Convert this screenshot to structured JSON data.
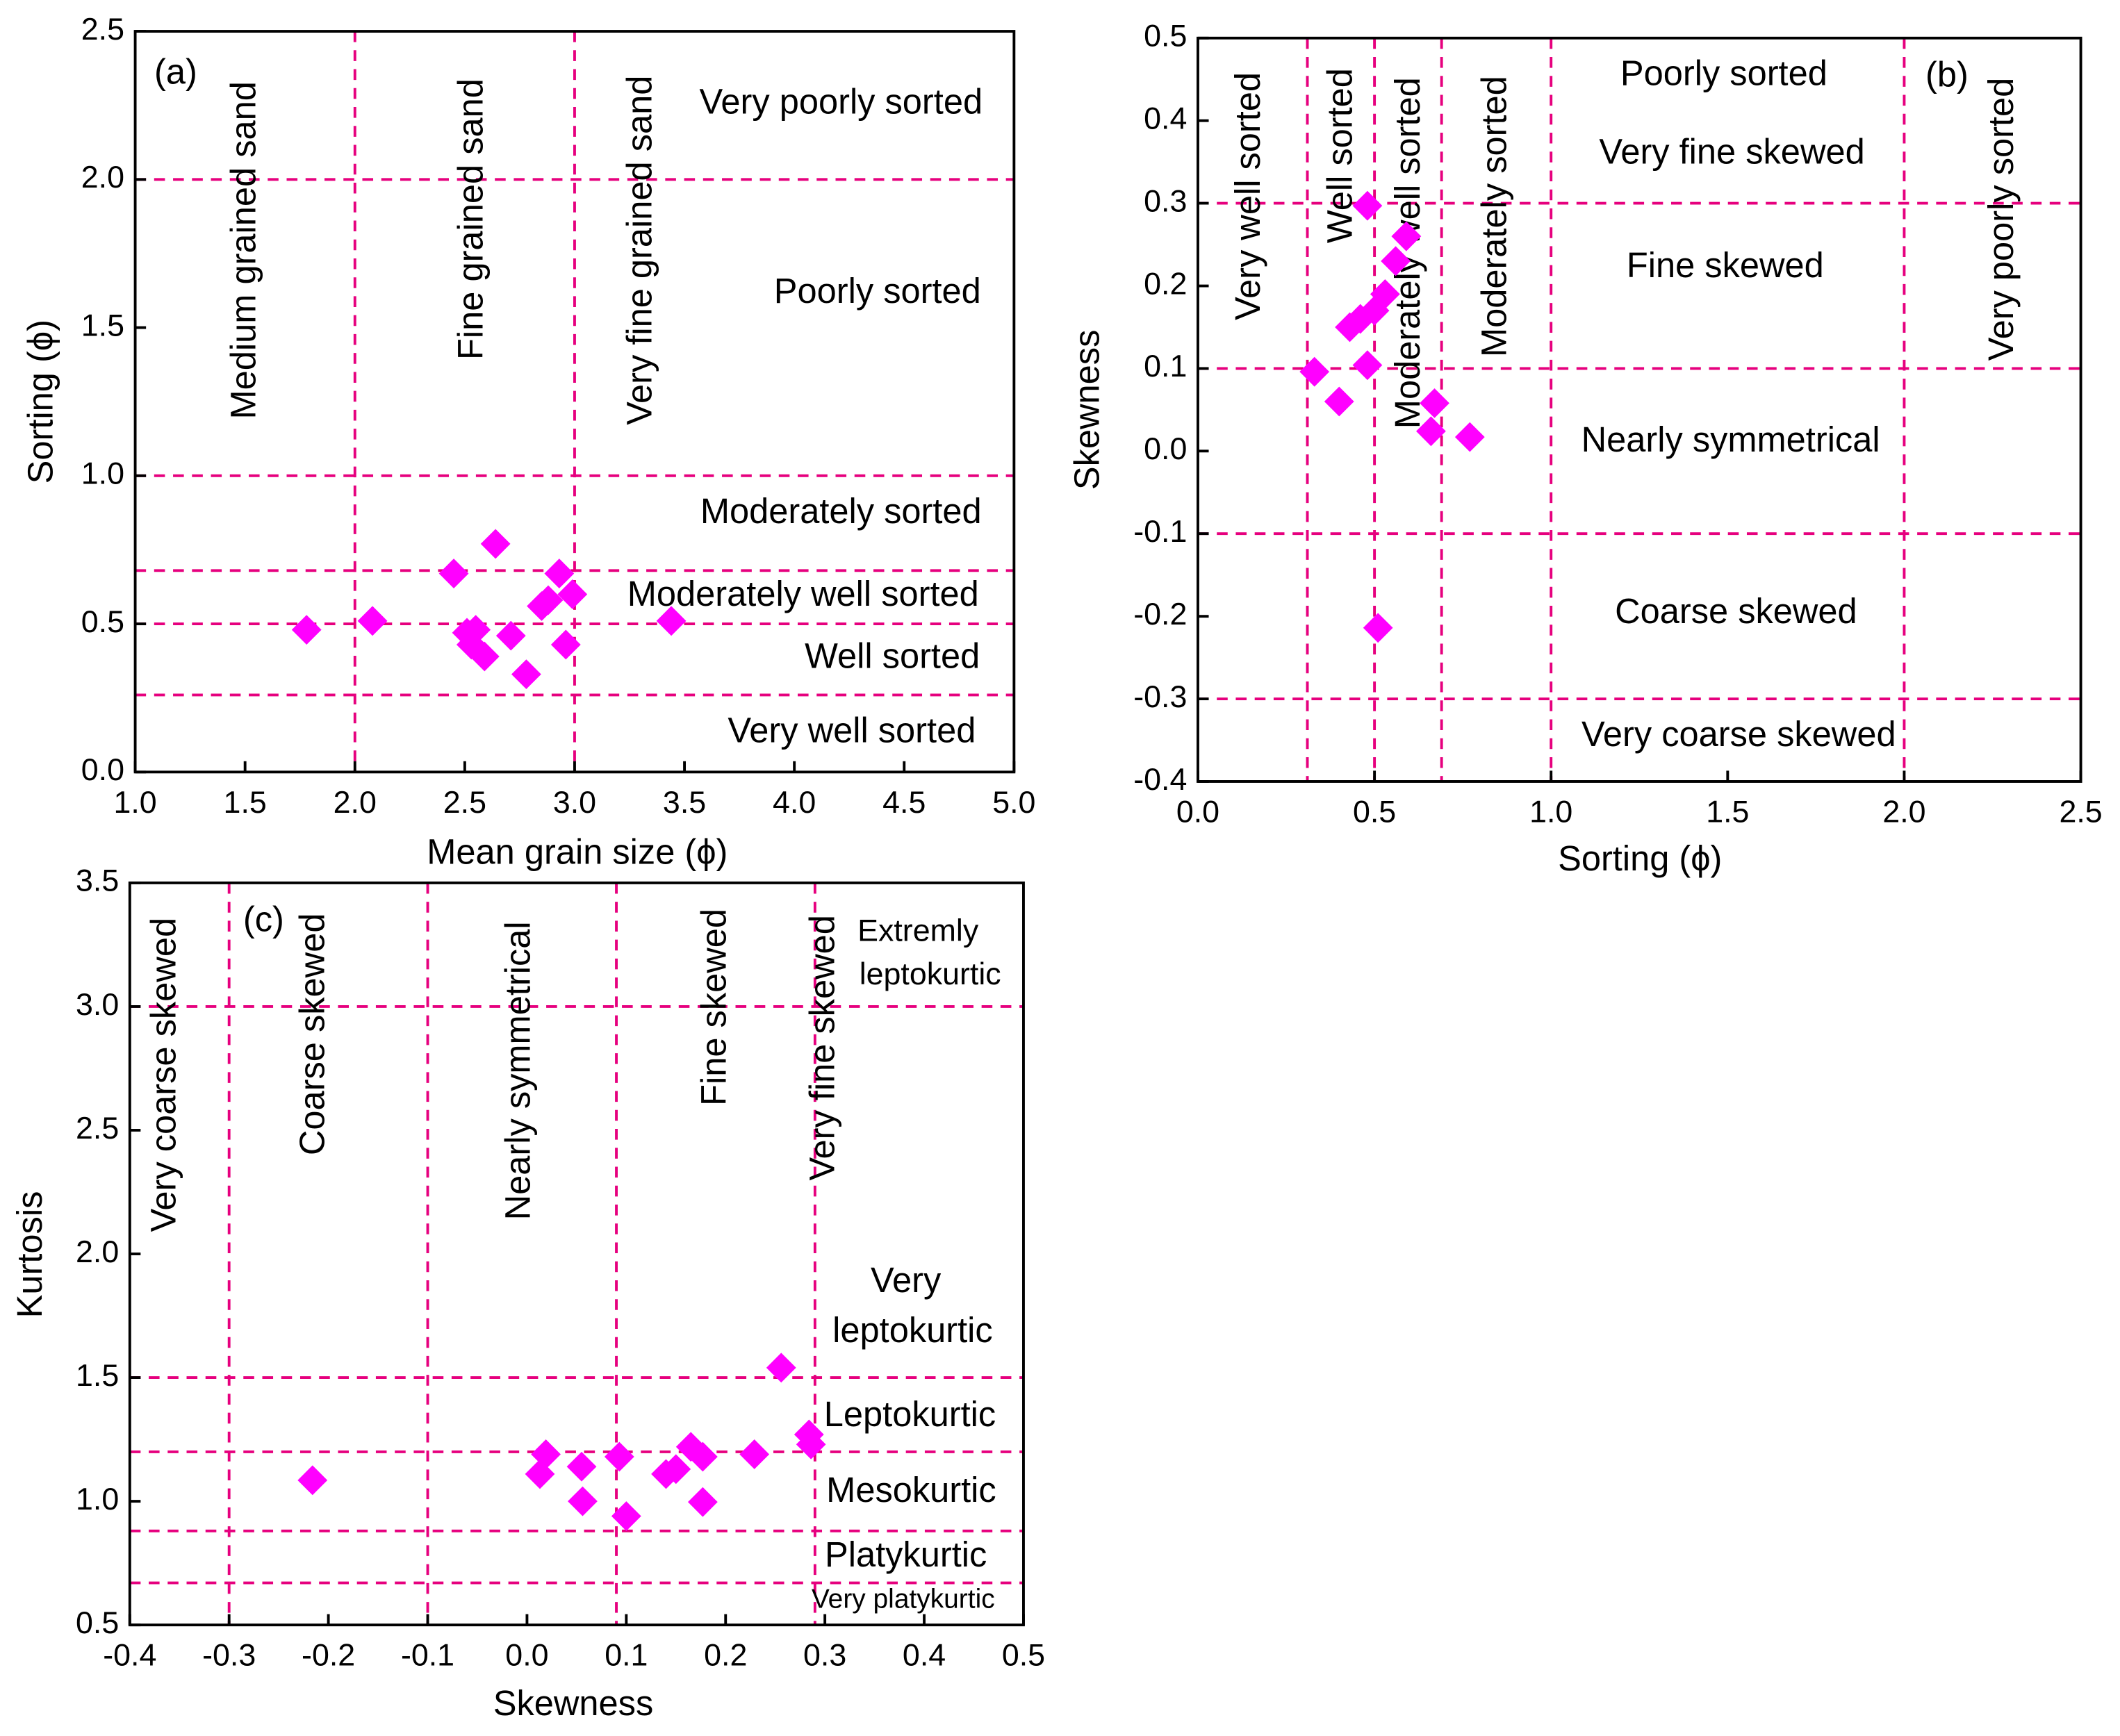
{
  "chart_data": [
    {
      "type": "scatter",
      "panel_label": "(a)",
      "x_label": "Mean grain size (ϕ)",
      "y_label": "Sorting (ϕ)",
      "xlim": [
        1.0,
        5.0
      ],
      "ylim": [
        0.0,
        2.5
      ],
      "xticks": [
        {
          "value": 1.0,
          "label": "1.0"
        },
        1.5,
        {
          "value": 2.0,
          "label": "2.0"
        },
        2.5,
        {
          "value": 3.0,
          "label": "3.0"
        },
        3.5,
        {
          "value": 4.0,
          "label": "4.0"
        },
        4.5,
        {
          "value": 5.0,
          "label": "5.0"
        }
      ],
      "yticks": [
        {
          "value": 0.0,
          "label": "0.0"
        },
        0.5,
        {
          "value": 1.0,
          "label": "1.0"
        },
        1.5,
        {
          "value": 2.0,
          "label": "2.0"
        },
        2.5
      ],
      "vlines": [
        2.0,
        3.0
      ],
      "hlines": [
        2.0,
        1.0,
        0.68,
        0.5,
        0.26
      ],
      "line_color": "#e6007e",
      "marker_color": "#ff00ff",
      "annotations": [
        "Medium grained sand",
        "Fine grained sand",
        "Very fine grained sand",
        "Very poorly sorted",
        "Poorly sorted",
        "Moderately sorted",
        "Moderately well sorted",
        "Well sorted",
        "Very well sorted"
      ],
      "x": [
        1.78,
        2.08,
        2.45,
        2.64,
        2.51,
        2.55,
        2.53,
        2.59,
        2.71,
        2.78,
        2.85,
        2.88,
        2.93,
        2.99,
        2.96,
        3.44
      ],
      "values": [
        0.48,
        0.51,
        0.67,
        0.77,
        0.47,
        0.48,
        0.43,
        0.39,
        0.46,
        0.33,
        0.56,
        0.58,
        0.67,
        0.6,
        0.43,
        0.51
      ]
    },
    {
      "type": "scatter",
      "panel_label": "(b)",
      "x_label": "Sorting (ϕ)",
      "y_label": "Skewness",
      "xlim": [
        0.0,
        2.5
      ],
      "ylim": [
        -0.4,
        0.5
      ],
      "xticks": [
        {
          "value": 0.0,
          "label": "0.0"
        },
        0.5,
        {
          "value": 1.0,
          "label": "1.0"
        },
        1.5,
        {
          "value": 2.0,
          "label": "2.0"
        },
        2.5
      ],
      "yticks": [
        -0.4,
        -0.3,
        -0.2,
        -0.1,
        {
          "value": 0.0,
          "label": "0.0"
        },
        0.1,
        0.2,
        0.3,
        0.4,
        0.5
      ],
      "vlines": [
        0.31,
        0.5,
        0.69,
        1.0,
        2.0
      ],
      "hlines": [
        0.3,
        0.1,
        -0.1,
        -0.3
      ],
      "line_color": "#e6007e",
      "marker_color": "#ff00ff",
      "annotations": [
        "Very well sorted",
        "Well sorted",
        "Moderately well sorted",
        "Moderately sorted",
        "Very poorly sorted",
        "Poorly sorted",
        "Very fine skewed",
        "Fine skewed",
        "Nearly symmetrical",
        "Coarse skewed",
        "Very coarse skewed"
      ],
      "x": [
        0.48,
        0.59,
        0.56,
        0.53,
        0.5,
        0.43,
        0.46,
        0.48,
        0.33,
        0.4,
        0.67,
        0.66,
        0.77,
        0.51
      ],
      "values": [
        0.297,
        0.26,
        0.23,
        0.19,
        0.17,
        0.15,
        0.16,
        0.104,
        0.096,
        0.06,
        0.058,
        0.024,
        0.017,
        -0.214
      ]
    },
    {
      "type": "scatter",
      "panel_label": "(c)",
      "x_label": "Skewness",
      "y_label": "Kurtosis",
      "xlim": [
        -0.4,
        0.5
      ],
      "ylim": [
        0.5,
        3.5
      ],
      "xticks": [
        -0.4,
        -0.3,
        -0.2,
        -0.1,
        {
          "value": 0.0,
          "label": "0.0"
        },
        0.1,
        0.2,
        0.3,
        0.4,
        0.5
      ],
      "yticks": [
        0.5,
        {
          "value": 1.0,
          "label": "1.0"
        },
        1.5,
        {
          "value": 2.0,
          "label": "2.0"
        },
        2.5,
        {
          "value": 3.0,
          "label": "3.0"
        },
        3.5
      ],
      "vlines": [
        -0.3,
        -0.1,
        0.09,
        0.29
      ],
      "hlines": [
        3.0,
        1.5,
        1.2,
        0.88,
        0.67
      ],
      "line_color": "#e6007e",
      "marker_color": "#ff00ff",
      "annotations": [
        "Very coarse skewed",
        "Coarse skewed",
        "Nearly symmetrical",
        "Fine skewed",
        "Very fine skewed",
        "Extremly",
        "leptokurtic",
        "Very",
        "leptokurtic",
        "Leptokurtic",
        "Mesokurtic",
        "Platykurtic",
        "Very platykurtic"
      ],
      "x": [
        -0.216,
        0.019,
        0.013,
        0.055,
        0.056,
        0.093,
        0.1,
        0.14,
        0.15,
        0.165,
        0.177,
        0.177,
        0.229,
        0.256,
        0.286,
        0.284
      ],
      "values": [
        1.085,
        1.19,
        1.11,
        1.14,
        1.0,
        1.18,
        0.94,
        1.11,
        1.13,
        1.22,
        1.18,
        0.997,
        1.19,
        1.54,
        1.23,
        1.27
      ]
    }
  ]
}
